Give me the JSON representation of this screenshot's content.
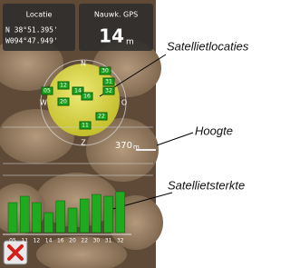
{
  "header": {
    "location_label": "Locatie",
    "accuracy_label": "Nauwk. GPS",
    "latitude": "N  38°51.395'",
    "longitude": "W094°47.949'",
    "accuracy": "14",
    "accuracy_unit": "m"
  },
  "sky_plot": {
    "north": "N",
    "west": "W",
    "east": "O",
    "south": "Z",
    "satellites": [
      "12",
      "05",
      "14",
      "16",
      "30",
      "31",
      "32",
      "20",
      "22",
      "11"
    ]
  },
  "altitude": {
    "value": "370",
    "unit": "m"
  },
  "signal": {
    "satellites": [
      "05",
      "11",
      "12",
      "14",
      "16",
      "20",
      "22",
      "30",
      "31",
      "32"
    ],
    "strengths": [
      33,
      40,
      33,
      22,
      35,
      27,
      37,
      42,
      40,
      45
    ]
  },
  "callouts": {
    "satellite_locations": "Satellietlocaties",
    "altitude": "Hoogte",
    "satellite_strength": "Satellietsterkte"
  }
}
